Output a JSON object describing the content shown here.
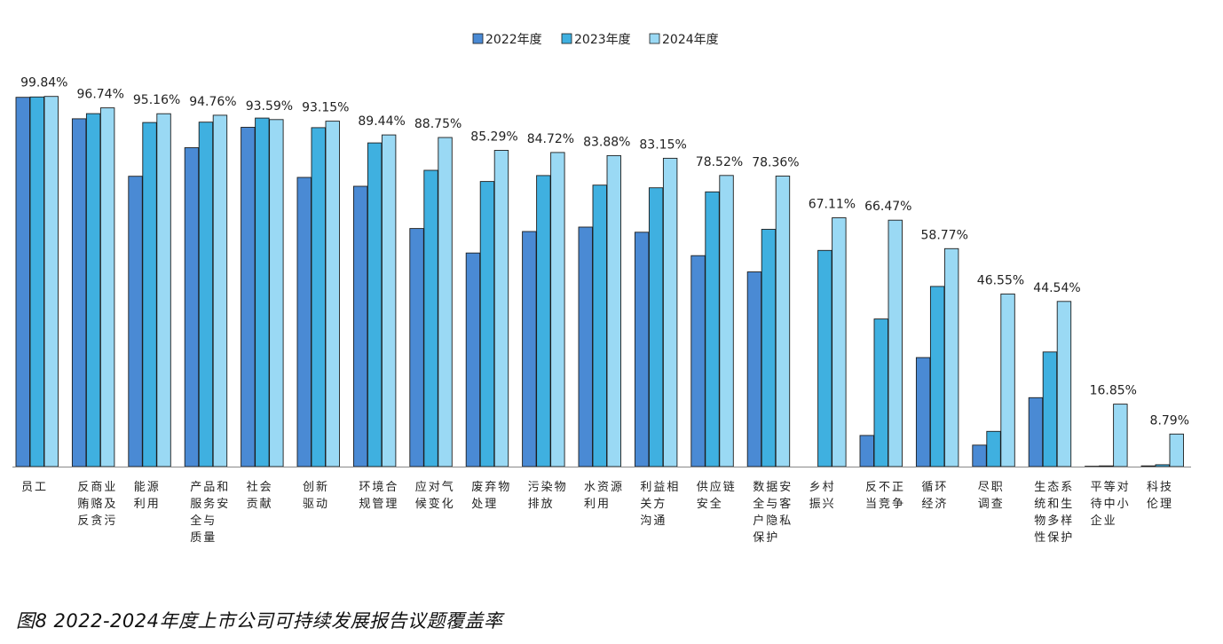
{
  "caption": "图8 2022-2024年度上市公司可持续发展报告议题覆盖率",
  "chart_data": {
    "type": "bar",
    "title": "",
    "xlabel": "",
    "ylabel": "",
    "ylim": [
      0,
      100
    ],
    "grid": false,
    "legend_position": "top-center",
    "colors": [
      "#4a8ad4",
      "#3fb0e0",
      "#9ad9f4"
    ],
    "categories": [
      [
        "员工"
      ],
      [
        "反商业",
        "贿赂及",
        "反贪污"
      ],
      [
        "能源",
        "利用"
      ],
      [
        "产品和",
        "服务安",
        "全与",
        "质量"
      ],
      [
        "社会",
        "贡献"
      ],
      [
        "创新",
        "驱动"
      ],
      [
        "环境合",
        "规管理"
      ],
      [
        "应对气",
        "候变化"
      ],
      [
        "废弃物",
        "处理"
      ],
      [
        "污染物",
        "排放"
      ],
      [
        "水资源",
        "利用"
      ],
      [
        "利益相",
        "关方",
        "沟通"
      ],
      [
        "供应链",
        "安全"
      ],
      [
        "数据安",
        "全与客",
        "户隐私",
        "保护"
      ],
      [
        "乡村",
        "振兴"
      ],
      [
        "反不正",
        "当竞争"
      ],
      [
        "循环",
        "经济"
      ],
      [
        "尽职",
        "调查"
      ],
      [
        "生态系",
        "统和生",
        "物多样",
        "性保护"
      ],
      [
        "平等对",
        "待中小",
        "企业"
      ],
      [
        "科技",
        "伦理"
      ]
    ],
    "series": [
      {
        "name": "2022年度",
        "values": [
          99.6,
          93.8,
          78.3,
          86.0,
          91.5,
          78.0,
          75.6,
          64.2,
          57.6,
          63.4,
          64.6,
          63.2,
          56.9,
          52.5,
          null,
          8.4,
          29.4,
          5.8,
          18.6,
          0.1,
          0.2
        ]
      },
      {
        "name": "2023年度",
        "values": [
          99.7,
          95.2,
          92.8,
          92.9,
          94.0,
          91.4,
          87.3,
          79.9,
          76.9,
          78.5,
          75.9,
          75.2,
          74.1,
          64.0,
          58.3,
          39.8,
          48.6,
          9.5,
          30.9,
          0.2,
          0.5
        ]
      },
      {
        "name": "2024年度",
        "values": [
          99.84,
          96.74,
          95.16,
          94.76,
          93.59,
          93.15,
          89.44,
          88.75,
          85.29,
          84.72,
          83.88,
          83.15,
          78.52,
          78.36,
          67.11,
          66.47,
          58.77,
          46.55,
          44.54,
          16.85,
          8.79
        ]
      }
    ],
    "data_labels": [
      "99.84%",
      "96.74%",
      "95.16%",
      "94.76%",
      "93.59%",
      "93.15%",
      "89.44%",
      "88.75%",
      "85.29%",
      "84.72%",
      "83.88%",
      "83.15%",
      "78.52%",
      "78.36%",
      "67.11%",
      "66.47%",
      "58.77%",
      "46.55%",
      "44.54%",
      "16.85%",
      "8.79%"
    ]
  }
}
